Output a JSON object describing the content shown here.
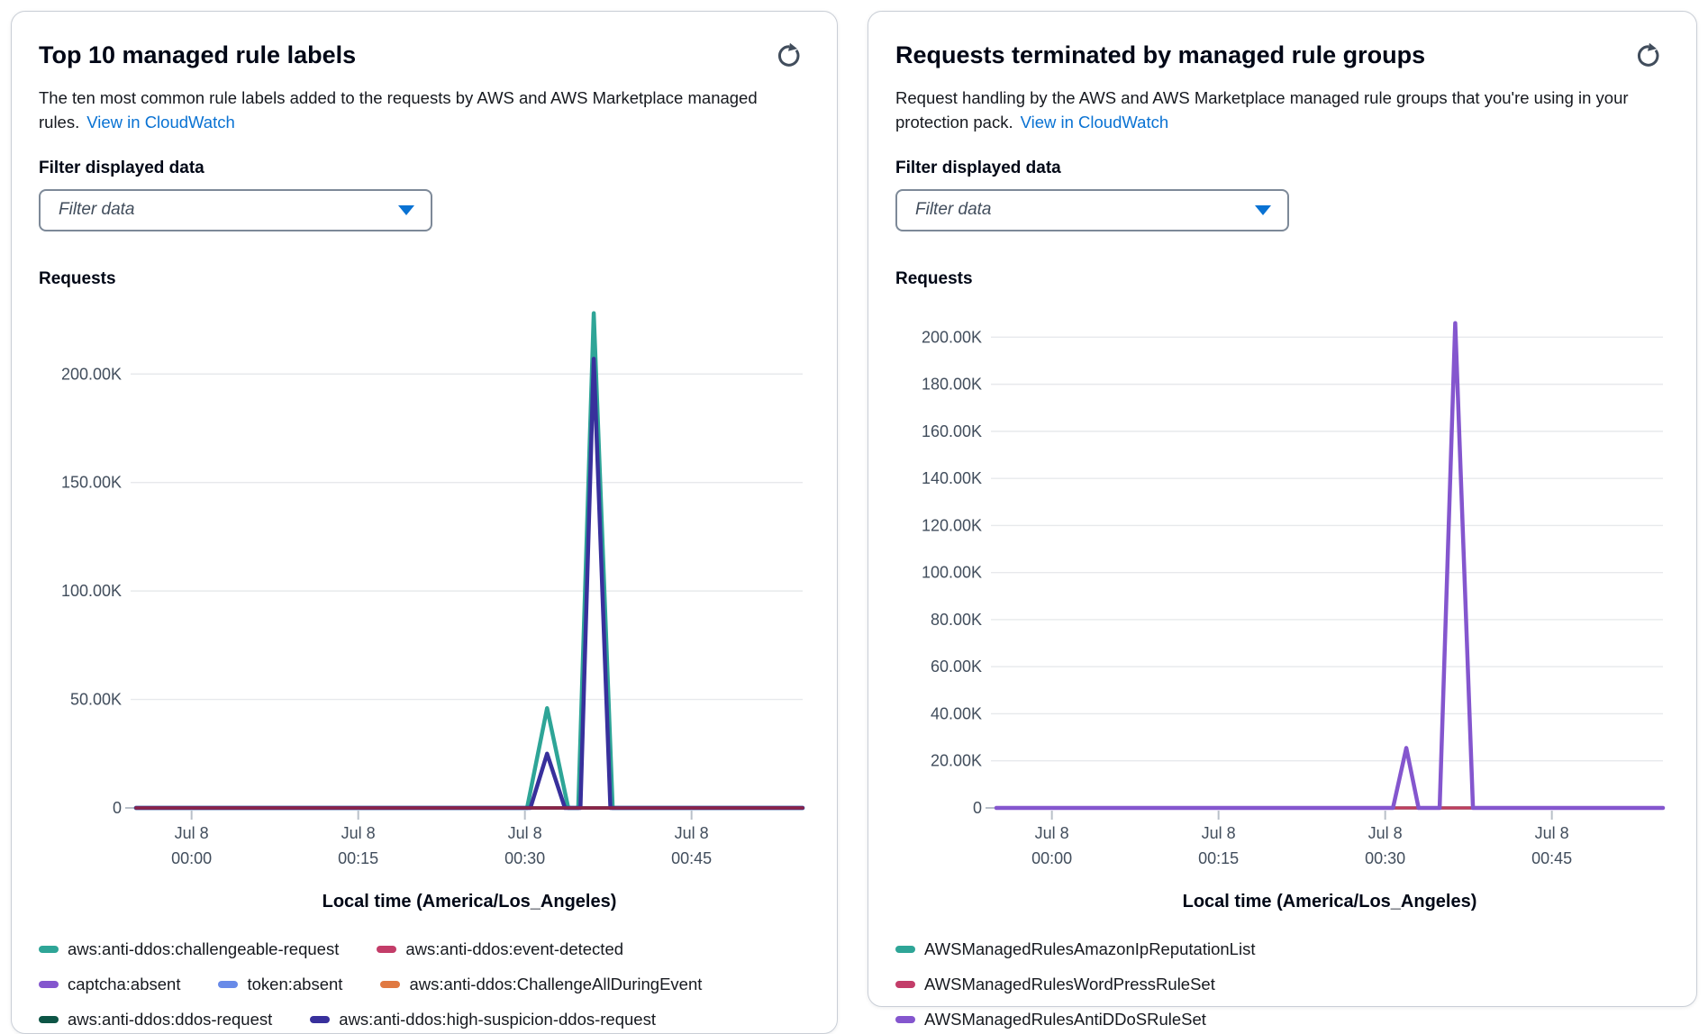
{
  "panels": [
    {
      "title": "Top 10 managed rule labels",
      "description": "The ten most common rule labels added to the requests by AWS and AWS Marketplace managed rules.",
      "link_label": "View in CloudWatch",
      "filter_label": "Filter displayed data",
      "filter_placeholder": "Filter data",
      "y_axis_title": "Requests",
      "x_axis_title": "Local time (America/Los_Angeles)",
      "legend": [
        {
          "label": "aws:anti-ddos:challengeable-request",
          "color": "#2ea597"
        },
        {
          "label": "aws:anti-ddos:event-detected",
          "color": "#c33d69"
        },
        {
          "label": "captcha:absent",
          "color": "#8456ce"
        },
        {
          "label": "token:absent",
          "color": "#688ae8"
        },
        {
          "label": "aws:anti-ddos:ChallengeAllDuringEvent",
          "color": "#e07941"
        },
        {
          "label": "aws:anti-ddos:ddos-request",
          "color": "#0d5546"
        },
        {
          "label": "aws:anti-ddos:high-suspicion-ddos-request",
          "color": "#38309c"
        }
      ]
    },
    {
      "title": "Requests terminated by managed rule groups",
      "description": "Request handling by the AWS and AWS Marketplace managed rule groups that you're using in your protection pack.",
      "link_label": "View in CloudWatch",
      "filter_label": "Filter displayed data",
      "filter_placeholder": "Filter data",
      "y_axis_title": "Requests",
      "x_axis_title": "Local time (America/Los_Angeles)",
      "legend": [
        {
          "label": "AWSManagedRulesAmazonIpReputationList",
          "color": "#2ea597"
        },
        {
          "label": "AWSManagedRulesWordPressRuleSet",
          "color": "#c33d69"
        },
        {
          "label": "AWSManagedRulesAntiDDoSRuleSet",
          "color": "#8456ce"
        }
      ]
    }
  ],
  "chart_data": [
    {
      "type": "line",
      "title": "Top 10 managed rule labels",
      "ylabel": "Requests",
      "xlabel": "Local time (America/Los_Angeles)",
      "ylim": [
        0,
        230000
      ],
      "xlim_minutes": [
        -5,
        55
      ],
      "grid": true,
      "yticks": [
        {
          "value": 0,
          "label": "0"
        },
        {
          "value": 50000,
          "label": "50.00K"
        },
        {
          "value": 100000,
          "label": "100.00K"
        },
        {
          "value": 150000,
          "label": "150.00K"
        },
        {
          "value": 200000,
          "label": "200.00K"
        }
      ],
      "xticks": [
        {
          "minute": 0,
          "top": "Jul 8",
          "bottom": "00:00"
        },
        {
          "minute": 15,
          "top": "Jul 8",
          "bottom": "00:15"
        },
        {
          "minute": 30,
          "top": "Jul 8",
          "bottom": "00:30"
        },
        {
          "minute": 45,
          "top": "Jul 8",
          "bottom": "00:45"
        }
      ],
      "series": [
        {
          "name": "token:absent",
          "color": "#688ae8",
          "width": 3.5,
          "points": [
            [
              -5,
              0
            ],
            [
              55,
              0
            ]
          ]
        },
        {
          "name": "captcha:absent",
          "color": "#8456ce",
          "width": 3.5,
          "points": [
            [
              -5,
              0
            ],
            [
              55,
              0
            ]
          ]
        },
        {
          "name": "aws:anti-ddos:ChallengeAllDuringEvent",
          "color": "#e07941",
          "width": 3.5,
          "points": [
            [
              -5,
              0
            ],
            [
              55,
              0
            ]
          ]
        },
        {
          "name": "aws:anti-ddos:ddos-request",
          "color": "#0d5546",
          "width": 3.5,
          "points": [
            [
              -5,
              0
            ],
            [
              55,
              0
            ]
          ]
        },
        {
          "name": "aws:anti-ddos:challengeable-request",
          "color": "#2ea597",
          "width": 4.5,
          "points": [
            [
              -5,
              0
            ],
            [
              30.2,
              0
            ],
            [
              32,
              46000
            ],
            [
              33.9,
              0
            ],
            [
              34.8,
              0
            ],
            [
              36.2,
              228000
            ],
            [
              37.9,
              0
            ],
            [
              55,
              0
            ]
          ]
        },
        {
          "name": "aws:anti-ddos:high-suspicion-ddos-request",
          "color": "#38309c",
          "width": 4.5,
          "points": [
            [
              -5,
              0
            ],
            [
              30.5,
              0
            ],
            [
              32,
              25000
            ],
            [
              33.6,
              0
            ],
            [
              35,
              0
            ],
            [
              36.2,
              207000
            ],
            [
              37.7,
              0
            ],
            [
              55,
              0
            ]
          ]
        },
        {
          "name": "aws:anti-ddos:event-detected",
          "color": "#8b2347",
          "width": 3.5,
          "points": [
            [
              -5,
              0
            ],
            [
              55,
              0
            ]
          ]
        }
      ]
    },
    {
      "type": "line",
      "title": "Requests terminated by managed rule groups",
      "ylabel": "Requests",
      "xlabel": "Local time (America/Los_Angeles)",
      "ylim": [
        0,
        212000
      ],
      "xlim_minutes": [
        -5,
        55
      ],
      "grid": true,
      "yticks": [
        {
          "value": 0,
          "label": "0"
        },
        {
          "value": 20000,
          "label": "20.00K"
        },
        {
          "value": 40000,
          "label": "40.00K"
        },
        {
          "value": 60000,
          "label": "60.00K"
        },
        {
          "value": 80000,
          "label": "80.00K"
        },
        {
          "value": 100000,
          "label": "100.00K"
        },
        {
          "value": 120000,
          "label": "120.00K"
        },
        {
          "value": 140000,
          "label": "140.00K"
        },
        {
          "value": 160000,
          "label": "160.00K"
        },
        {
          "value": 180000,
          "label": "180.00K"
        },
        {
          "value": 200000,
          "label": "200.00K"
        }
      ],
      "xticks": [
        {
          "minute": 0,
          "top": "Jul 8",
          "bottom": "00:00"
        },
        {
          "minute": 15,
          "top": "Jul 8",
          "bottom": "00:15"
        },
        {
          "minute": 30,
          "top": "Jul 8",
          "bottom": "00:30"
        },
        {
          "minute": 45,
          "top": "Jul 8",
          "bottom": "00:45"
        }
      ],
      "series": [
        {
          "name": "AWSManagedRulesAmazonIpReputationList",
          "color": "#2ea597",
          "width": 3.5,
          "points": [
            [
              -5,
              0
            ],
            [
              55,
              0
            ]
          ]
        },
        {
          "name": "AWSManagedRulesWordPressRuleSet",
          "color": "#bf3e5e",
          "width": 3.5,
          "points": [
            [
              -5,
              0
            ],
            [
              55,
              0
            ]
          ]
        },
        {
          "name": "AWSManagedRulesAntiDDoSRuleSet",
          "color": "#8456ce",
          "width": 4.5,
          "points": [
            [
              -5,
              0
            ],
            [
              30.7,
              0
            ],
            [
              31.9,
              25500
            ],
            [
              33,
              0
            ],
            [
              34.9,
              0
            ],
            [
              36.3,
              206000
            ],
            [
              37.9,
              0
            ],
            [
              55,
              0
            ]
          ]
        }
      ]
    }
  ]
}
